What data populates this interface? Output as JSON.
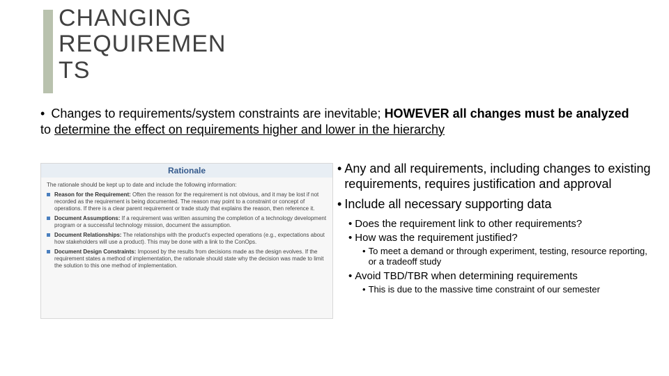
{
  "title": "CHANGING REQUIREMENTS",
  "title_bar_color": "#b9c2ae",
  "title_color": "#404040",
  "main_bullet": {
    "pre": "Changes to requirements/system constraints are inevitable; ",
    "bold": "HOWEVER all changes must be analyzed",
    "post": " to ",
    "underline": "determine the effect on requirements higher and lower in the hierarchy"
  },
  "rationale": {
    "header": "Rationale",
    "header_bg": "#e8eef4",
    "header_color": "#355a8c",
    "bullet_color": "#4a7fbf",
    "intro": "The rationale should be kept up to date and include the following information:",
    "items": [
      {
        "label": "Reason for the Requirement:",
        "text": " Often the reason for the requirement is not obvious, and it may be lost if not recorded as the requirement is being documented. The reason may point to a constraint or concept of operations. If there is a clear parent requirement or trade study that explains the reason, then reference it."
      },
      {
        "label": "Document Assumptions:",
        "text": " If a requirement was written assuming the completion of a technology development program or a successful technology mission, document the assumption."
      },
      {
        "label": "Document Relationships:",
        "text": " The relationships with the product's expected operations (e.g., expectations about how stakeholders will use a product). This may be done with a link to the ConOps."
      },
      {
        "label": "Document Design Constraints:",
        "text": " Imposed by the results from decisions made as the design evolves. If the requirement states a method of implementation, the rationale should state why the decision was made to limit the solution to this one method of implementation."
      }
    ]
  },
  "right": {
    "b1": "Any and all requirements, including changes to existing requirements, requires justification and approval",
    "b2": "Include all necessary supporting data",
    "b2_s1": "Does the requirement link to other requirements?",
    "b2_s2": "How was the requirement justified?",
    "b2_s2_s1": "To meet a demand or through experiment, testing, resource reporting, or a tradeoff study",
    "b2_s3": "Avoid TBD/TBR when determining requirements",
    "b2_s3_s1": "This is due to the massive time constraint of our semester"
  }
}
